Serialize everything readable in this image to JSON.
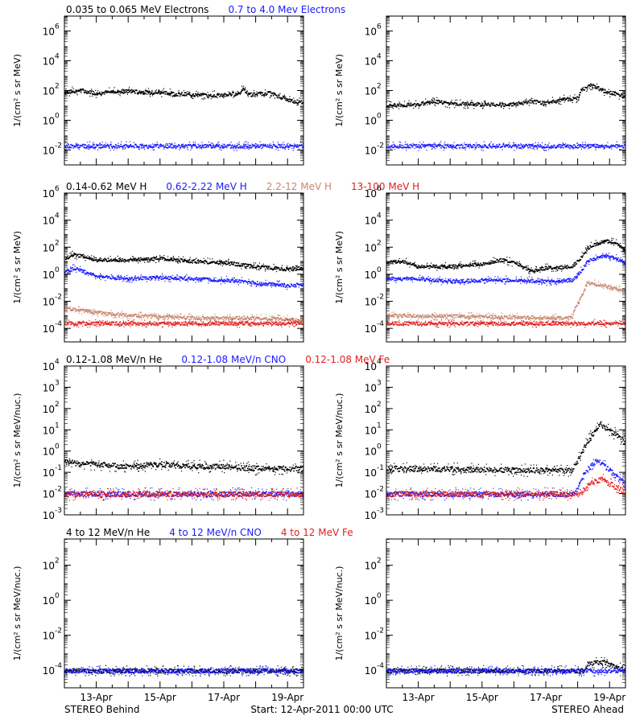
{
  "colors": {
    "black": "#000000",
    "blue": "#1a1aff",
    "tan": "#c8876e",
    "red": "#e02020",
    "axis": "#000000"
  },
  "footer": {
    "left": "STEREO Behind",
    "center": "Start: 12-Apr-2011 00:00 UTC",
    "right": "STEREO Ahead"
  },
  "chart_data": [
    {
      "type": "scatter",
      "row": "electrons",
      "legend": [
        {
          "label": "0.035 to 0.065 MeV Electrons",
          "color": "#000000"
        },
        {
          "label": "0.7 to 4.0 Mev Electrons",
          "color": "#1a1aff"
        }
      ],
      "ylabel": "1/(cm² s sr MeV)",
      "yscale": "log",
      "ylim_exp": [
        -3,
        7
      ],
      "yticks": [
        {
          "exp": -2,
          "label": "10"
        },
        {
          "exp": 0,
          "label": "10"
        },
        {
          "exp": 2,
          "label": "10"
        },
        {
          "exp": 4,
          "label": "10"
        },
        {
          "exp": 6,
          "label": "10"
        }
      ],
      "ytick_exps": [
        "-2",
        "0",
        "2",
        "4",
        "6"
      ],
      "xlim_days": [
        0,
        7.5
      ],
      "xticks": [
        "13-Apr",
        "15-Apr",
        "17-Apr",
        "19-Apr"
      ],
      "behind": {
        "series": [
          {
            "color": "#000000",
            "points": [
              [
                0,
                1.9
              ],
              [
                0.5,
                2.05
              ],
              [
                1,
                1.85
              ],
              [
                1.5,
                1.95
              ],
              [
                2,
                2.0
              ],
              [
                2.5,
                1.9
              ],
              [
                3,
                1.9
              ],
              [
                3.5,
                1.8
              ],
              [
                4,
                1.75
              ],
              [
                4.5,
                1.7
              ],
              [
                5,
                1.75
              ],
              [
                5.4,
                1.8
              ],
              [
                5.6,
                2.1
              ],
              [
                5.8,
                1.75
              ],
              [
                6.4,
                1.85
              ],
              [
                6.8,
                1.6
              ],
              [
                7.0,
                1.4
              ],
              [
                7.5,
                1.2
              ]
            ]
          },
          {
            "color": "#1a1aff",
            "points": [
              [
                0,
                -1.7
              ],
              [
                7.5,
                -1.7
              ]
            ]
          }
        ]
      },
      "ahead": {
        "series": [
          {
            "color": "#000000",
            "points": [
              [
                0,
                1.0
              ],
              [
                1,
                1.1
              ],
              [
                1.5,
                1.3
              ],
              [
                2,
                1.15
              ],
              [
                3,
                1.1
              ],
              [
                4,
                1.1
              ],
              [
                4.5,
                1.3
              ],
              [
                5,
                1.2
              ],
              [
                5.6,
                1.45
              ],
              [
                6.0,
                1.5
              ],
              [
                6.1,
                2.1
              ],
              [
                6.4,
                2.4
              ],
              [
                6.8,
                2.0
              ],
              [
                7.2,
                1.8
              ],
              [
                7.5,
                1.6
              ]
            ]
          },
          {
            "color": "#1a1aff",
            "points": [
              [
                0,
                -1.7
              ],
              [
                7.5,
                -1.7
              ]
            ]
          }
        ]
      }
    },
    {
      "type": "scatter",
      "row": "protons",
      "legend": [
        {
          "label": "0.14-0.62 MeV H",
          "color": "#000000"
        },
        {
          "label": "0.62-2.22 MeV H",
          "color": "#1a1aff"
        },
        {
          "label": "2.2-12 MeV H",
          "color": "#c8876e"
        },
        {
          "label": "13-100 MeV H",
          "color": "#e02020"
        }
      ],
      "ylabel": "1/(cm² s sr MeV)",
      "yscale": "log",
      "ylim_exp": [
        -5,
        6
      ],
      "yticks": [
        {
          "exp": -4,
          "label": "10"
        },
        {
          "exp": -2,
          "label": "10"
        },
        {
          "exp": 0,
          "label": "10"
        },
        {
          "exp": 2,
          "label": "10"
        },
        {
          "exp": 4,
          "label": "10"
        },
        {
          "exp": 6,
          "label": "10"
        }
      ],
      "ytick_exps": [
        "-4",
        "-2",
        "0",
        "2",
        "4",
        "6"
      ],
      "xlim_days": [
        0,
        7.5
      ],
      "xticks": [
        "13-Apr",
        "15-Apr",
        "17-Apr",
        "19-Apr"
      ],
      "behind": {
        "series": [
          {
            "color": "#000000",
            "points": [
              [
                0,
                1.2
              ],
              [
                0.3,
                1.5
              ],
              [
                1,
                1.1
              ],
              [
                2,
                1.1
              ],
              [
                3,
                1.2
              ],
              [
                4,
                1.0
              ],
              [
                5,
                0.9
              ],
              [
                6,
                0.6
              ],
              [
                7,
                0.4
              ],
              [
                7.5,
                0.5
              ]
            ]
          },
          {
            "color": "#1a1aff",
            "points": [
              [
                0,
                0.2
              ],
              [
                0.3,
                0.5
              ],
              [
                1,
                -0.1
              ],
              [
                2,
                -0.3
              ],
              [
                3,
                -0.2
              ],
              [
                4,
                -0.3
              ],
              [
                5,
                -0.4
              ],
              [
                6,
                -0.6
              ],
              [
                7,
                -0.8
              ],
              [
                7.5,
                -0.7
              ]
            ]
          },
          {
            "color": "#c8876e",
            "points": [
              [
                0,
                -2.5
              ],
              [
                0.5,
                -2.6
              ],
              [
                1,
                -2.8
              ],
              [
                2,
                -3.0
              ],
              [
                3,
                -3.1
              ],
              [
                4,
                -3.2
              ],
              [
                5,
                -3.2
              ],
              [
                6,
                -3.2
              ],
              [
                7,
                -3.3
              ],
              [
                7.5,
                -3.4
              ]
            ]
          },
          {
            "color": "#e02020",
            "points": [
              [
                0,
                -3.6
              ],
              [
                7.5,
                -3.6
              ]
            ]
          }
        ]
      },
      "ahead": {
        "series": [
          {
            "color": "#000000",
            "points": [
              [
                0,
                0.9
              ],
              [
                0.5,
                1.0
              ],
              [
                1,
                0.6
              ],
              [
                2,
                0.6
              ],
              [
                3,
                0.8
              ],
              [
                3.6,
                1.1
              ],
              [
                4,
                0.9
              ],
              [
                4.5,
                0.3
              ],
              [
                5,
                0.5
              ],
              [
                5.8,
                0.6
              ],
              [
                6.0,
                1.0
              ],
              [
                6.3,
                2.0
              ],
              [
                6.8,
                2.5
              ],
              [
                7.2,
                2.4
              ],
              [
                7.5,
                1.6
              ]
            ]
          },
          {
            "color": "#1a1aff",
            "points": [
              [
                0,
                -0.3
              ],
              [
                1,
                -0.3
              ],
              [
                2,
                -0.5
              ],
              [
                3,
                -0.4
              ],
              [
                4,
                -0.4
              ],
              [
                5,
                -0.5
              ],
              [
                5.8,
                -0.4
              ],
              [
                6.0,
                0.0
              ],
              [
                6.3,
                1.0
              ],
              [
                6.8,
                1.4
              ],
              [
                7.2,
                1.2
              ],
              [
                7.5,
                0.8
              ]
            ]
          },
          {
            "color": "#c8876e",
            "points": [
              [
                0,
                -3.0
              ],
              [
                5.8,
                -3.2
              ],
              [
                6.0,
                -2.0
              ],
              [
                6.3,
                -0.6
              ],
              [
                6.8,
                -0.8
              ],
              [
                7.5,
                -1.2
              ]
            ]
          },
          {
            "color": "#e02020",
            "points": [
              [
                0,
                -3.6
              ],
              [
                7.5,
                -3.6
              ]
            ]
          }
        ]
      }
    },
    {
      "type": "scatter",
      "row": "ions-low",
      "legend": [
        {
          "label": "0.12-1.08 MeV/n He",
          "color": "#000000"
        },
        {
          "label": "0.12-1.08 MeV/n CNO",
          "color": "#1a1aff"
        },
        {
          "label": "0.12-1.08 MeV Fe",
          "color": "#e02020"
        }
      ],
      "ylabel": "1/(cm² s sr MeV/nuc.)",
      "yscale": "log",
      "ylim_exp": [
        -3,
        4
      ],
      "yticks": [
        {
          "exp": -3,
          "label": "10"
        },
        {
          "exp": -2,
          "label": "10"
        },
        {
          "exp": -1,
          "label": "10"
        },
        {
          "exp": 0,
          "label": "10"
        },
        {
          "exp": 1,
          "label": "10"
        },
        {
          "exp": 2,
          "label": "10"
        },
        {
          "exp": 3,
          "label": "10"
        },
        {
          "exp": 4,
          "label": "10"
        }
      ],
      "ytick_exps": [
        "-3",
        "-2",
        "-1",
        "0",
        "1",
        "2",
        "3",
        "4"
      ],
      "xlim_days": [
        0,
        7.5
      ],
      "xticks": [
        "13-Apr",
        "15-Apr",
        "17-Apr",
        "19-Apr"
      ],
      "behind": {
        "series": [
          {
            "color": "#000000",
            "points": [
              [
                0,
                -0.5
              ],
              [
                1,
                -0.6
              ],
              [
                2,
                -0.7
              ],
              [
                3,
                -0.6
              ],
              [
                4,
                -0.7
              ],
              [
                5,
                -0.7
              ],
              [
                6,
                -0.8
              ],
              [
                7.5,
                -0.8
              ]
            ]
          },
          {
            "color": "#1a1aff",
            "points": [
              [
                0,
                -2.0
              ],
              [
                7.5,
                -2.0
              ]
            ]
          },
          {
            "color": "#e02020",
            "points": [
              [
                0,
                -2.0
              ],
              [
                7.5,
                -2.0
              ]
            ]
          }
        ]
      },
      "ahead": {
        "series": [
          {
            "color": "#000000",
            "points": [
              [
                0,
                -0.8
              ],
              [
                5.8,
                -0.9
              ],
              [
                6.0,
                -0.4
              ],
              [
                6.3,
                0.5
              ],
              [
                6.7,
                1.3
              ],
              [
                7.1,
                0.9
              ],
              [
                7.5,
                0.4
              ]
            ]
          },
          {
            "color": "#1a1aff",
            "points": [
              [
                0,
                -2.0
              ],
              [
                5.9,
                -2.0
              ],
              [
                6.2,
                -1.0
              ],
              [
                6.6,
                -0.4
              ],
              [
                7.0,
                -0.9
              ],
              [
                7.5,
                -1.6
              ]
            ]
          },
          {
            "color": "#e02020",
            "points": [
              [
                0,
                -2.0
              ],
              [
                6.0,
                -2.0
              ],
              [
                6.4,
                -1.5
              ],
              [
                6.7,
                -1.3
              ],
              [
                7.1,
                -1.6
              ],
              [
                7.5,
                -1.9
              ]
            ]
          }
        ]
      }
    },
    {
      "type": "scatter",
      "row": "ions-high",
      "legend": [
        {
          "label": "4 to 12 MeV/n He",
          "color": "#000000"
        },
        {
          "label": "4 to 12 MeV/n CNO",
          "color": "#1a1aff"
        },
        {
          "label": "4 to 12 MeV Fe",
          "color": "#e02020"
        }
      ],
      "ylabel": "1/(cm² s sr MeV/nuc.)",
      "yscale": "log",
      "ylim_exp": [
        -5,
        3.5
      ],
      "yticks": [
        {
          "exp": -4,
          "label": "10"
        },
        {
          "exp": -2,
          "label": "10"
        },
        {
          "exp": 0,
          "label": "10"
        },
        {
          "exp": 2,
          "label": "10"
        }
      ],
      "ytick_exps": [
        "-4",
        "-2",
        "0",
        "2"
      ],
      "xlim_days": [
        0,
        7.5
      ],
      "xticks": [
        "13-Apr",
        "15-Apr",
        "17-Apr",
        "19-Apr"
      ],
      "behind": {
        "series": [
          {
            "color": "#000000",
            "points": [
              [
                0,
                -4.0
              ],
              [
                7.5,
                -4.0
              ]
            ]
          },
          {
            "color": "#1a1aff",
            "points": [
              [
                0,
                -4.0
              ],
              [
                7.5,
                -4.0
              ]
            ]
          }
        ]
      },
      "ahead": {
        "series": [
          {
            "color": "#000000",
            "points": [
              [
                0,
                -4.0
              ],
              [
                6.2,
                -4.0
              ],
              [
                6.3,
                -3.6
              ],
              [
                6.8,
                -3.5
              ],
              [
                7.2,
                -3.8
              ],
              [
                7.5,
                -3.9
              ]
            ]
          },
          {
            "color": "#1a1aff",
            "points": [
              [
                0,
                -4.0
              ],
              [
                7.5,
                -4.0
              ]
            ]
          }
        ]
      }
    }
  ]
}
